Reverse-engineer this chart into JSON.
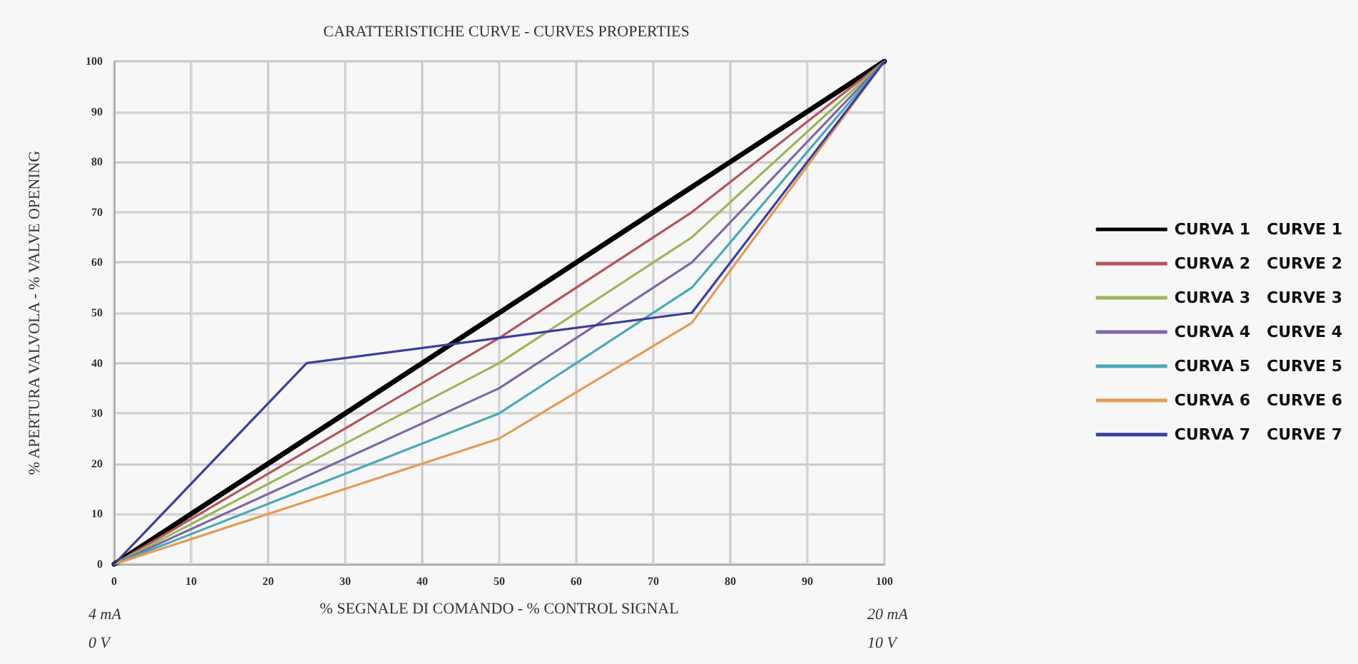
{
  "chart_data": {
    "type": "line",
    "title": "CARATTERISTICHE CURVE - CURVES PROPERTIES",
    "xlabel": "% SEGNALE DI COMANDO - % CONTROL SIGNAL",
    "ylabel": "% APERTURA VALVOLA - % VALVE OPENING",
    "x": [
      0,
      25,
      50,
      75,
      100
    ],
    "series": [
      {
        "name": "CURVA 1   CURVE 1",
        "color": "#000000",
        "values": [
          0,
          25,
          50,
          75,
          100
        ]
      },
      {
        "name": "CURVA 2   CURVE 2",
        "color": "#b5545c",
        "values": [
          0,
          22.5,
          45,
          70,
          100
        ]
      },
      {
        "name": "CURVA 3   CURVE 3",
        "color": "#9cb65a",
        "values": [
          0,
          20,
          40,
          65,
          100
        ]
      },
      {
        "name": "CURVA 4   CURVE 4",
        "color": "#7f66a8",
        "values": [
          0,
          17.5,
          35,
          60,
          100
        ]
      },
      {
        "name": "CURVA 5   CURVE 5",
        "color": "#4aa8b8",
        "values": [
          0,
          15,
          30,
          55,
          100
        ]
      },
      {
        "name": "CURVA 6   CURVE 6",
        "color": "#e59a55",
        "values": [
          0,
          12.5,
          25,
          48,
          100
        ]
      },
      {
        "name": "CURVA 7   CURVE 7",
        "color": "#3b3f9e",
        "values": [
          0,
          40,
          45,
          50,
          100
        ]
      }
    ],
    "xlim": [
      0,
      100
    ],
    "xticks": [
      0,
      10,
      20,
      30,
      40,
      50,
      60,
      70,
      80,
      90,
      100
    ],
    "ylim": [
      0,
      100
    ],
    "yticks": [
      0,
      10,
      20,
      30,
      40,
      50,
      60,
      70,
      80,
      90,
      100
    ],
    "grid": true,
    "legend": "right",
    "marker": "none",
    "line_style": "solid",
    "annotations": [
      "4 mA",
      "0 V",
      "20 mA",
      "10 V"
    ]
  }
}
